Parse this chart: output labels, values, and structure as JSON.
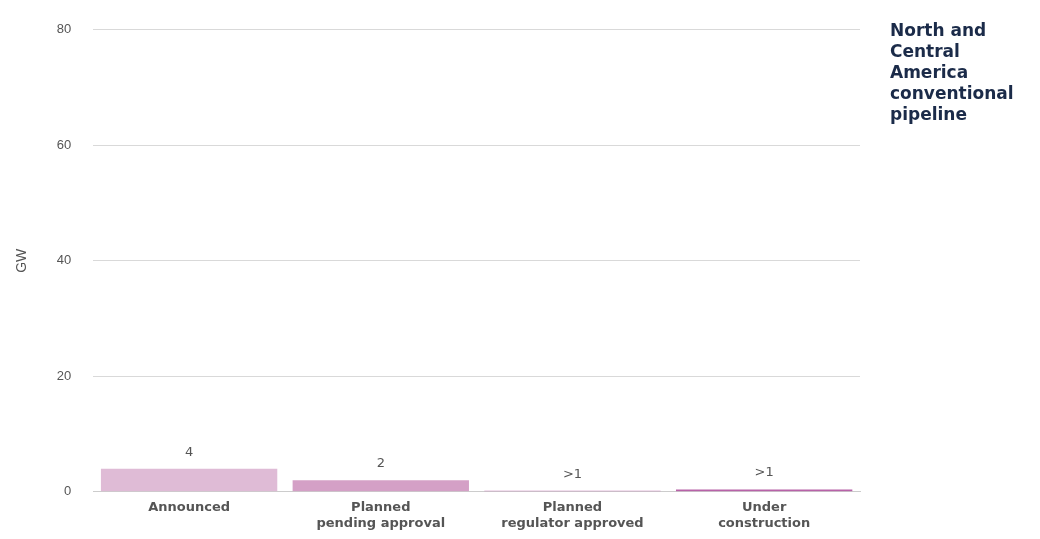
{
  "chart_data": {
    "type": "bar",
    "title": "North and Central America conventional pipeline",
    "ylabel": "GW",
    "categories": [
      "Announced",
      "Planned\npending approval",
      "Planned\nregulator approved",
      "Under\nconstruction"
    ],
    "values": [
      4,
      2,
      0.2,
      0.4
    ],
    "colors": [
      "#dfbbd6",
      "#d4a0c6",
      "#c77db8",
      "#b862a8"
    ],
    "value_labels": [
      "4",
      "2",
      ">1",
      ">1"
    ],
    "ylim": [
      0,
      80
    ],
    "yticks": [
      0,
      20,
      40,
      60,
      80
    ],
    "grid": "y",
    "legend": false
  }
}
